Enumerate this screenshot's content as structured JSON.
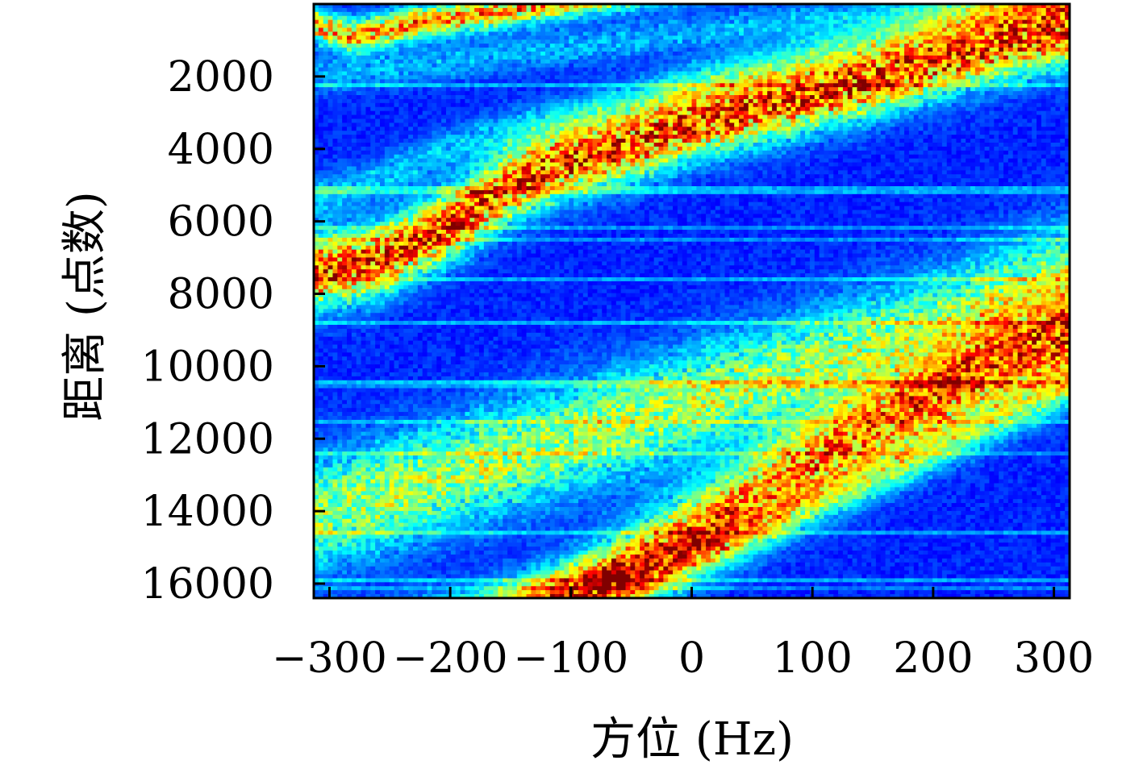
{
  "chart_data": {
    "type": "heatmap",
    "title": "",
    "xlabel": "方位 (Hz)",
    "ylabel": "距离 (点数)",
    "xlim": [
      -313,
      313
    ],
    "ylim": [
      0,
      16400
    ],
    "x_axis_direction": "left-to-right",
    "y_axis_direction": "top-to-bottom",
    "x_ticks": [
      {
        "value": -300,
        "label": "−300"
      },
      {
        "value": -200,
        "label": "−200"
      },
      {
        "value": -100,
        "label": "−100"
      },
      {
        "value": 0,
        "label": "0"
      },
      {
        "value": 100,
        "label": "100"
      },
      {
        "value": 200,
        "label": "200"
      },
      {
        "value": 300,
        "label": "300"
      }
    ],
    "y_ticks": [
      {
        "value": 2000,
        "label": "2000"
      },
      {
        "value": 4000,
        "label": "4000"
      },
      {
        "value": 6000,
        "label": "6000"
      },
      {
        "value": 8000,
        "label": "8000"
      },
      {
        "value": 10000,
        "label": "10000"
      },
      {
        "value": 12000,
        "label": "12000"
      },
      {
        "value": 14000,
        "label": "14000"
      },
      {
        "value": 16000,
        "label": "16000"
      }
    ],
    "colormap": "jet",
    "colormap_stops": [
      "#00008f",
      "#0000ff",
      "#0080ff",
      "#00ffff",
      "#80ff80",
      "#ffff00",
      "#ff8000",
      "#ff0000",
      "#800000"
    ],
    "bands": [
      {
        "x": [
          -313,
          -280,
          -240,
          -200
        ],
        "y": [
          600,
          900,
          600,
          400
        ],
        "width": 450,
        "intensity": 0.62
      },
      {
        "x": [
          -313,
          -260,
          -200,
          -150,
          -100,
          -50,
          0,
          50,
          100,
          150,
          200,
          250,
          313
        ],
        "y": [
          7400,
          7100,
          6100,
          5000,
          4300,
          3900,
          3300,
          2900,
          2500,
          2100,
          1600,
          1150,
          700
        ],
        "width": 950,
        "intensity": 0.74
      },
      {
        "x": [
          -313,
          -250,
          -200,
          -150,
          -100,
          -50,
          0,
          50,
          100,
          150
        ],
        "y": [
          5400,
          4700,
          4000,
          3500,
          3100,
          2700,
          2200,
          1800,
          1400,
          1000
        ],
        "width": 600,
        "intensity": 0.18
      },
      {
        "x": [
          -313,
          -250,
          -200,
          -150,
          -100,
          -50,
          0,
          50,
          100
        ],
        "y": [
          2000,
          1800,
          1600,
          1400,
          1200,
          1000,
          800,
          600,
          450
        ],
        "width": 500,
        "intensity": 0.16
      },
      {
        "x": [
          150,
          200,
          250,
          313
        ],
        "y": [
          9500,
          9000,
          8300,
          7600
        ],
        "width": 1500,
        "intensity": 0.42
      },
      {
        "x": [
          50,
          100,
          150,
          200,
          250,
          313
        ],
        "y": [
          13600,
          12600,
          11700,
          10900,
          10000,
          9300
        ],
        "width": 1200,
        "intensity": 0.62
      },
      {
        "x": [
          -120,
          -50,
          0,
          50,
          100,
          150,
          200
        ],
        "y": [
          16300,
          15800,
          15200,
          14600,
          13800,
          13100,
          12300
        ],
        "width": 650,
        "intensity": 0.3
      }
    ]
  }
}
